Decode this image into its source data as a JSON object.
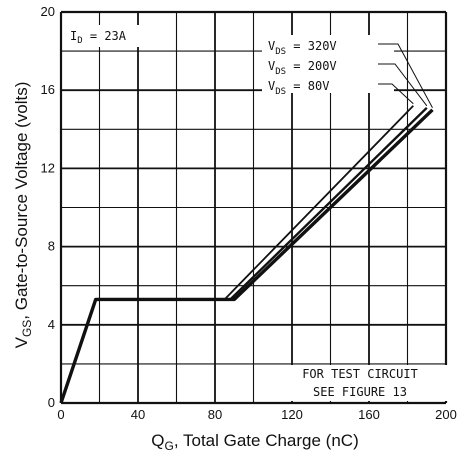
{
  "chart_data": {
    "type": "line",
    "xlabel": "Q_G, Total Gate Charge (nC)",
    "ylabel": "V_GS, Gate-to-Source Voltage (volts)",
    "xlim": [
      0,
      200
    ],
    "ylim": [
      0,
      20
    ],
    "x_ticks": [
      "0",
      "40",
      "80",
      "120",
      "160",
      "200"
    ],
    "y_ticks": [
      "0",
      "4",
      "8",
      "12",
      "16",
      "20"
    ],
    "grid": true,
    "conditions": {
      "label_main": "I",
      "label_sub": "D",
      "label_rest": " = 23A"
    },
    "series": [
      {
        "name": "V_DS = 320V",
        "sym": "V",
        "sub": "DS",
        "val": " = 320V",
        "x": [
          0,
          18,
          90,
          193
        ],
        "y": [
          0,
          5.3,
          5.3,
          15.0
        ]
      },
      {
        "name": "V_DS = 200V",
        "sym": "V",
        "sub": "DS",
        "val": " = 200V",
        "x": [
          0,
          18,
          88,
          190
        ],
        "y": [
          0,
          5.3,
          5.3,
          15.1
        ]
      },
      {
        "name": "V_DS = 80V",
        "sym": "V",
        "sub": "DS",
        "val": " = 80V",
        "x": [
          0,
          18,
          85,
          183
        ],
        "y": [
          0,
          5.3,
          5.3,
          15.2
        ]
      }
    ],
    "annotation": [
      "FOR TEST CIRCUIT",
      "SEE FIGURE 13"
    ]
  }
}
